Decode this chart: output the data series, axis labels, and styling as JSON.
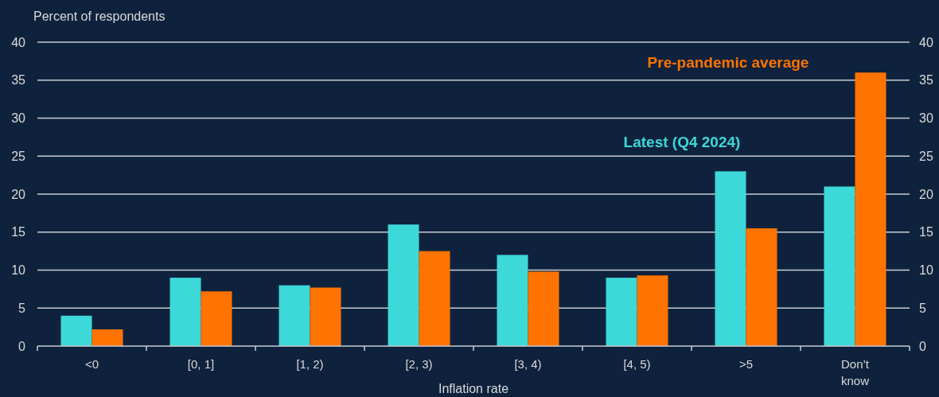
{
  "chart_data": {
    "type": "bar",
    "ylabel": "Percent of respondents",
    "xlabel": "Inflation rate",
    "categories": [
      "<0",
      "[0, 1]",
      "[1, 2)",
      "[2, 3)",
      "[3, 4)",
      "[4, 5)",
      ">5",
      "Don’t know"
    ],
    "series": [
      {
        "name": "Latest (Q4 2024)",
        "color": "#3dd8d8",
        "values": [
          4,
          9,
          8,
          16,
          12,
          9,
          23,
          21
        ]
      },
      {
        "name": "Pre-pandemic average",
        "color": "#ff7300",
        "values": [
          2.2,
          7.2,
          7.7,
          12.5,
          9.8,
          9.3,
          15.5,
          36
        ]
      }
    ],
    "ylim": [
      0,
      40
    ],
    "yticks": [
      0,
      5,
      10,
      15,
      20,
      25,
      30,
      35,
      40
    ],
    "y2lim": [
      0,
      40
    ],
    "y2ticks": [
      0,
      5,
      10,
      15,
      20,
      25,
      30,
      35,
      40
    ],
    "grid": "y"
  }
}
